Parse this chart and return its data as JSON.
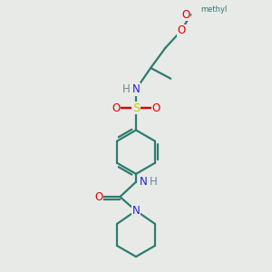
{
  "background_color": "#e8eae8",
  "bond_color": "#2d7d6e",
  "atom_colors": {
    "N": "#2222dd",
    "O": "#dd0000",
    "S": "#cccc00",
    "H": "#6a8a8a",
    "C": "#2d7d6e"
  },
  "line_width": 1.6,
  "font_size": 8.5
}
